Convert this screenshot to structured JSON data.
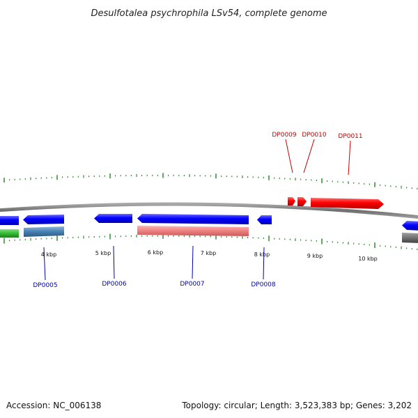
{
  "title": "Desulfotalea psychrophila LSv54, complete genome",
  "footer": {
    "accession": "Accession: NC_006138",
    "summary": "Topology: circular; Length: 3,523,383 bp; Genes: 3,202"
  },
  "colors": {
    "backbone": "#808080",
    "tick": "#2e8b2e",
    "forward_gene": "#ff0000",
    "reverse_gene": "#0000ff",
    "forward_label": "#cc0000",
    "reverse_label": "#0000aa",
    "rrna": "#3cb33c",
    "steelblue": "#4682b4",
    "pink": "#f08080",
    "gray": "#707070"
  },
  "ticks": [
    {
      "kbp": 4,
      "label": "4 kbp"
    },
    {
      "kbp": 5,
      "label": "5 kbp"
    },
    {
      "kbp": 6,
      "label": "6 kbp"
    },
    {
      "kbp": 7,
      "label": "7 kbp"
    },
    {
      "kbp": 8,
      "label": "8 kbp"
    },
    {
      "kbp": 9,
      "label": "9 kbp"
    },
    {
      "kbp": 10,
      "label": "10 kbp"
    }
  ],
  "genes": [
    {
      "label": "DP0005",
      "strand": "reverse"
    },
    {
      "label": "DP0006",
      "strand": "reverse"
    },
    {
      "label": "DP0007",
      "strand": "reverse"
    },
    {
      "label": "DP0008",
      "strand": "reverse"
    },
    {
      "label": "DP0009",
      "strand": "forward"
    },
    {
      "label": "DP0010",
      "strand": "forward"
    },
    {
      "label": "DP0011",
      "strand": "forward"
    }
  ]
}
